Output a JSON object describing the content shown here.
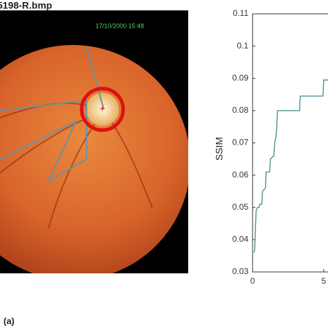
{
  "image": {
    "title": "5198-R.bmp",
    "timestamp": "17/10/2000 15:48"
  },
  "caption": "(a)",
  "chart_data": {
    "type": "line",
    "y_label": "SSIM",
    "x": [
      0.1,
      0.15,
      0.25,
      0.35,
      0.45,
      0.5,
      0.65,
      0.7,
      0.9,
      0.95,
      1.2,
      1.25,
      1.5,
      1.55,
      1.65,
      1.7,
      1.75,
      3.3,
      3.35,
      4.95,
      5.0,
      5.3
    ],
    "series": [
      {
        "color": "#3b8c88",
        "values": [
          0.036,
          0.037,
          0.049,
          0.05,
          0.05,
          0.051,
          0.051,
          0.055,
          0.056,
          0.061,
          0.061,
          0.065,
          0.066,
          0.07,
          0.072,
          0.075,
          0.08,
          0.08,
          0.0845,
          0.0845,
          0.0895,
          0.0895
        ]
      }
    ],
    "xlim": [
      0,
      5.3
    ],
    "xticks": [
      0,
      5
    ],
    "ylim": [
      0.03,
      0.11
    ],
    "yticks": [
      0.03,
      0.04,
      0.05,
      0.06,
      0.07,
      0.08,
      0.09,
      0.1,
      0.11
    ]
  }
}
